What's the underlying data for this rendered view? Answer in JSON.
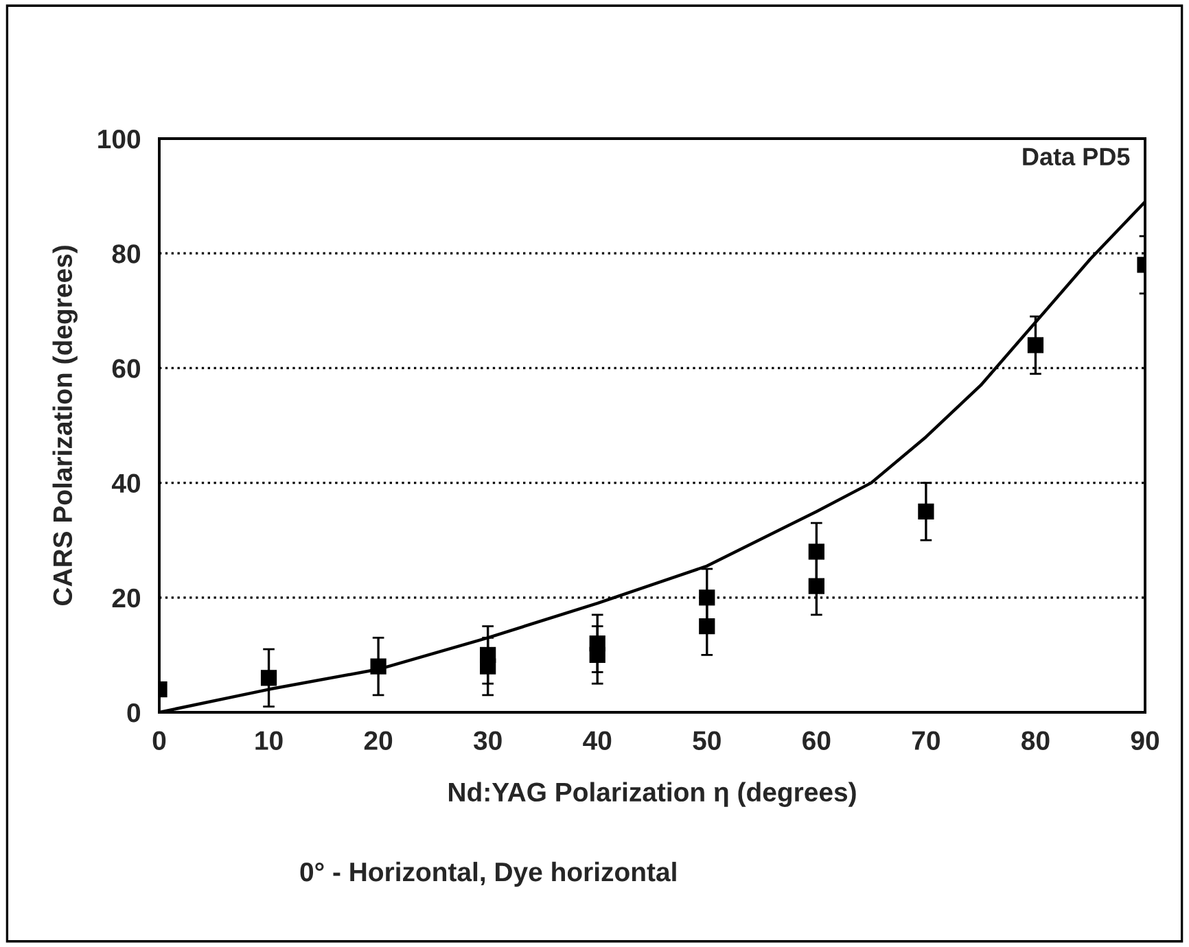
{
  "chart_data": {
    "type": "scatter",
    "xlabel": "Nd:YAG Polarization η (degrees)",
    "ylabel": "CARS Polarization (degrees)",
    "annotations": [
      "Data PD5",
      "0° - Horizontal, Dye horizontal"
    ],
    "xlim": [
      0,
      90
    ],
    "xticks": [
      0,
      10,
      20,
      30,
      40,
      50,
      60,
      70,
      80,
      90
    ],
    "ylim": [
      0,
      100
    ],
    "yticks": [
      0,
      20,
      40,
      60,
      80,
      100
    ],
    "grid": "y",
    "series": [
      {
        "color": "#000000",
        "marker": "square",
        "x": [
          0,
          10,
          20,
          30,
          30,
          40,
          40,
          50,
          50,
          60,
          60,
          70,
          80,
          90
        ],
        "values": [
          4,
          6,
          8,
          10,
          8,
          12,
          10,
          20,
          15,
          28,
          22,
          35,
          64,
          78
        ],
        "errors": [
          null,
          5,
          5,
          5,
          5,
          5,
          5,
          5,
          5,
          5,
          5,
          5,
          5,
          5
        ]
      },
      {
        "type": "line",
        "color": "#000000",
        "marker": "none",
        "line_style": "solid",
        "x": [
          0,
          10,
          20,
          30,
          40,
          50,
          60,
          65,
          70,
          75,
          80,
          85,
          90
        ],
        "values": [
          0,
          4,
          7.5,
          13,
          19,
          25.5,
          35,
          40,
          48,
          57,
          68,
          79,
          89
        ]
      }
    ]
  }
}
